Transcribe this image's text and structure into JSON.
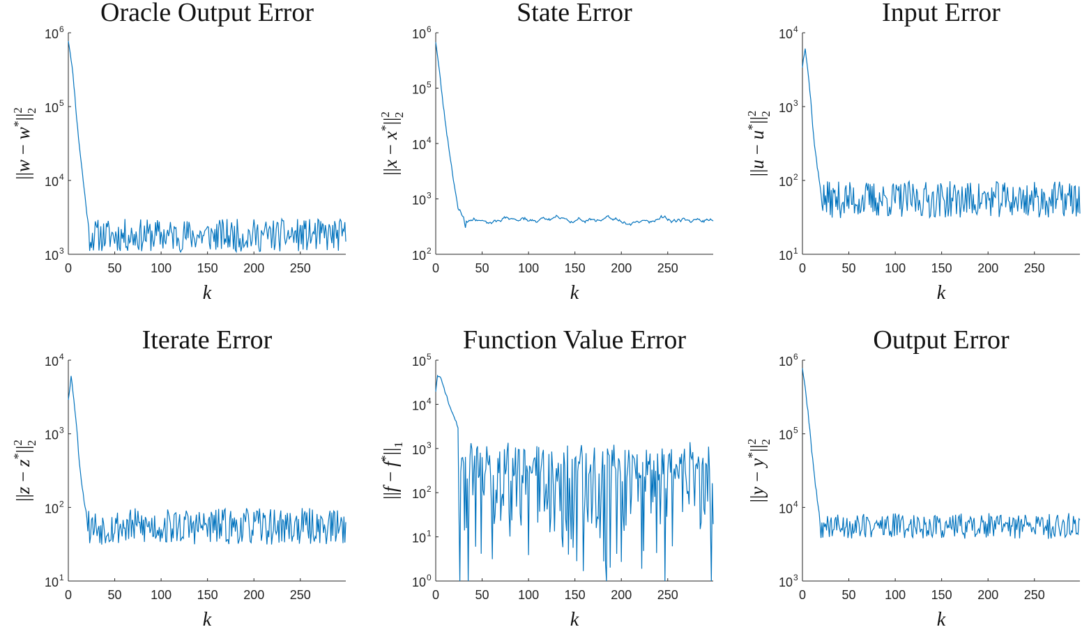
{
  "chart_data": [
    {
      "type": "line",
      "title": "Oracle Output Error",
      "xlabel": "k",
      "ylabel": {
        "pre": "||",
        "v": "w",
        "mid": " − ",
        "v2": "w",
        "post": "||",
        "sup": "2",
        "sub": "2"
      },
      "yscale": "log",
      "ylim_exp": [
        3,
        6
      ],
      "xlim": [
        0,
        299
      ],
      "xticks": [
        0,
        50,
        100,
        150,
        200,
        250
      ],
      "ytick_exponents": [
        3,
        4,
        5,
        6
      ],
      "series": [
        {
          "profile": [
            [
              0,
              800000
            ],
            [
              3,
              450000
            ],
            [
              6,
              200000
            ],
            [
              10,
              50000
            ],
            [
              14,
              17000
            ],
            [
              18,
              6000
            ],
            [
              22,
              2200
            ]
          ],
          "noise_floor": 1800,
          "noise_amp": 0.45,
          "seed": 11
        }
      ]
    },
    {
      "type": "line",
      "title": "State Error",
      "xlabel": "k",
      "ylabel": {
        "pre": "||",
        "v": "x",
        "mid": " − ",
        "v2": "x",
        "post": "||",
        "sup": "2",
        "sub": "2"
      },
      "yscale": "log",
      "ylim_exp": [
        2,
        6
      ],
      "xlim": [
        0,
        299
      ],
      "xticks": [
        0,
        50,
        100,
        150,
        200,
        250
      ],
      "ytick_exponents": [
        2,
        3,
        4,
        5,
        6
      ],
      "series": [
        {
          "profile": [
            [
              0,
              700000
            ],
            [
              4,
              200000
            ],
            [
              8,
              50000
            ],
            [
              12,
              15000
            ],
            [
              18,
              3000
            ],
            [
              24,
              650
            ],
            [
              27,
              600
            ],
            [
              30,
              450
            ],
            [
              32,
              300
            ]
          ],
          "noise_floor": 420,
          "noise_amp": 0.28,
          "seed": 23,
          "smooth": 3
        }
      ]
    },
    {
      "type": "line",
      "title": "Input Error",
      "xlabel": "k",
      "ylabel": {
        "pre": "||",
        "v": "u",
        "mid": " − ",
        "v2": "u",
        "post": "||",
        "sup": "2",
        "sub": "2"
      },
      "yscale": "log",
      "ylim_exp": [
        1,
        4
      ],
      "xlim": [
        0,
        299
      ],
      "xticks": [
        0,
        50,
        100,
        150,
        200,
        250
      ],
      "ytick_exponents": [
        1,
        2,
        3,
        4
      ],
      "series": [
        {
          "profile": [
            [
              0,
              3500
            ],
            [
              3,
              6500
            ],
            [
              6,
              3000
            ],
            [
              9,
              1200
            ],
            [
              12,
              400
            ],
            [
              16,
              150
            ],
            [
              20,
              70
            ]
          ],
          "noise_floor": 55,
          "noise_amp": 0.5,
          "seed": 37
        }
      ]
    },
    {
      "type": "line",
      "title": "Iterate Error",
      "xlabel": "k",
      "ylabel": {
        "pre": "||",
        "v": "z",
        "mid": " − ",
        "v2": "z",
        "post": "||",
        "sup": "2",
        "sub": "2"
      },
      "yscale": "log",
      "ylim_exp": [
        1,
        4
      ],
      "xlim": [
        0,
        299
      ],
      "xticks": [
        0,
        50,
        100,
        150,
        200,
        250
      ],
      "ytick_exponents": [
        1,
        2,
        3,
        4
      ],
      "series": [
        {
          "profile": [
            [
              0,
              3000
            ],
            [
              3,
              6000
            ],
            [
              6,
              3000
            ],
            [
              9,
              1200
            ],
            [
              12,
              400
            ],
            [
              16,
              150
            ],
            [
              20,
              75
            ]
          ],
          "noise_floor": 55,
          "noise_amp": 0.5,
          "seed": 53
        }
      ]
    },
    {
      "type": "line",
      "title": "Function Value Error",
      "xlabel": "k",
      "ylabel": {
        "pre": "||",
        "v": "f",
        "mid": " − ",
        "v2": "f",
        "post": "||",
        "sup": "",
        "sub": "1"
      },
      "yscale": "log",
      "ylim_exp": [
        0,
        5
      ],
      "xlim": [
        0,
        299
      ],
      "xticks": [
        0,
        50,
        100,
        150,
        200,
        250
      ],
      "ytick_exponents": [
        0,
        1,
        2,
        3,
        4,
        5
      ],
      "series": [
        {
          "profile": [
            [
              0,
              20000
            ],
            [
              2,
              45000
            ],
            [
              5,
              40000
            ],
            [
              10,
              20000
            ],
            [
              15,
              9000
            ],
            [
              20,
              5000
            ],
            [
              24,
              3000
            ]
          ],
          "noise_floor": 600,
          "noise_amp": 3.2,
          "seed": 71,
          "spiky": true,
          "dips": [
            [
              31,
              14
            ],
            [
              200,
              2.7
            ],
            [
              205,
              18
            ],
            [
              285,
              15
            ]
          ]
        }
      ]
    },
    {
      "type": "line",
      "title": "Output Error",
      "xlabel": "k",
      "ylabel": {
        "pre": "||",
        "v": "y",
        "mid": " − ",
        "v2": "y",
        "post": "||",
        "sup": "2",
        "sub": "2"
      },
      "yscale": "log",
      "ylim_exp": [
        3,
        6
      ],
      "xlim": [
        0,
        299
      ],
      "xticks": [
        0,
        50,
        100,
        150,
        200,
        250
      ],
      "ytick_exponents": [
        3,
        4,
        5,
        6
      ],
      "series": [
        {
          "profile": [
            [
              0,
              800000
            ],
            [
              3,
              400000
            ],
            [
              6,
              200000
            ],
            [
              10,
              60000
            ],
            [
              14,
              20000
            ],
            [
              18,
              8000
            ]
          ],
          "noise_floor": 5600,
          "noise_amp": 0.35,
          "seed": 89
        }
      ]
    }
  ]
}
